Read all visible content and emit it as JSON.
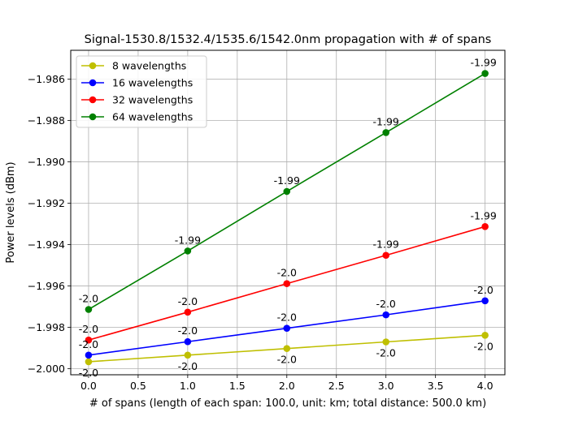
{
  "chart_data": {
    "type": "line",
    "title": "Signal-1530.8/1532.4/1535.6/1542.0nm propagation with # of spans",
    "xlabel": "# of spans (length of each span: 100.0, unit: km; total distance: 500.0 km)",
    "ylabel": "Power levels (dBm)",
    "xlim": [
      -0.18,
      4.2
    ],
    "ylim": [
      -2.0003,
      -1.9846
    ],
    "xticks": [
      "0.0",
      "0.5",
      "1.0",
      "1.5",
      "2.0",
      "2.5",
      "3.0",
      "3.5",
      "4.0"
    ],
    "xtick_values": [
      0,
      0.5,
      1,
      1.5,
      2,
      2.5,
      3,
      3.5,
      4
    ],
    "yticks": [
      "-2.000",
      "-1.998",
      "-1.996",
      "-1.994",
      "-1.992",
      "-1.990",
      "-1.988",
      "-1.986"
    ],
    "ytick_values": [
      -2.0,
      -1.998,
      -1.996,
      -1.994,
      -1.992,
      -1.99,
      -1.988,
      -1.986
    ],
    "grid": true,
    "legend_position": "top-left",
    "x": [
      0,
      1,
      2,
      3,
      4
    ],
    "series": [
      {
        "name": "8 wavelengths",
        "color": "#bfbf00",
        "values": [
          -1.99967,
          -1.99935,
          -1.99903,
          -1.99871,
          -1.99839
        ],
        "labels": [
          "-2.0",
          "-2.0",
          "-2.0",
          "-2.0",
          "-2.0"
        ],
        "label_pos": "below"
      },
      {
        "name": "16 wavelengths",
        "color": "#0000ff",
        "values": [
          -1.99935,
          -1.9987,
          -1.99805,
          -1.9974,
          -1.99672
        ],
        "labels": [
          "-2.0",
          "-2.0",
          "-2.0",
          "-2.0",
          "-2.0"
        ],
        "label_pos": "above"
      },
      {
        "name": "32 wavelengths",
        "color": "#ff0000",
        "values": [
          -1.99862,
          -1.99727,
          -1.99589,
          -1.99452,
          -1.99313
        ],
        "labels": [
          "-2.0",
          "-2.0",
          "-2.0",
          "-1.99",
          "-1.99"
        ],
        "label_pos": "above"
      },
      {
        "name": "64 wavelengths",
        "color": "#008000",
        "values": [
          -1.99714,
          -1.99431,
          -1.99143,
          -1.98858,
          -1.98572
        ],
        "labels": [
          "-2.0",
          "-1.99",
          "-1.99",
          "-1.99",
          "-1.99"
        ],
        "label_pos": "above"
      }
    ]
  }
}
